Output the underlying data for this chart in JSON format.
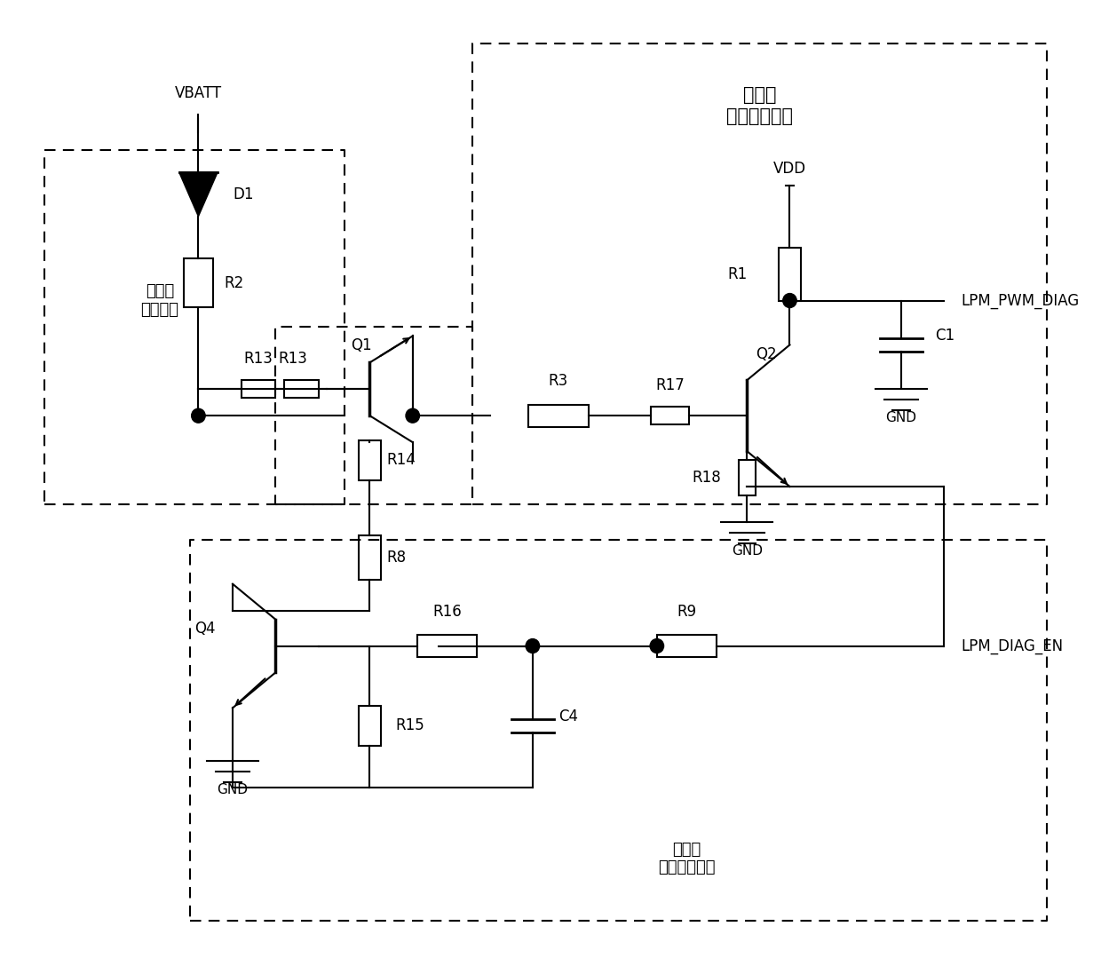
{
  "bg_color": "#ffffff",
  "line_color": "#000000",
  "line_width": 1.5,
  "dash_pattern": [
    6,
    4
  ],
  "font_size_label": 13,
  "font_size_component": 12,
  "font_size_title": 15,
  "title": "鼓风机\n诊断输出电路",
  "box1_label": "鼓风机\n负载电路",
  "box2_label": "鼓风机\n诊断使能电路",
  "vbatt_label": "VBATT",
  "vdd_label": "VDD",
  "gnd_label": "GND",
  "lpm_pwm_diag": "LPM_PWM_DIAG",
  "lpm_diag_en": "LPM_DIAG_EN",
  "components": {
    "D1": "D1",
    "R1": "R1",
    "R2": "R2",
    "R3": "R3",
    "R8": "R8",
    "R9": "R9",
    "R13": "R13",
    "R14": "R14",
    "R15": "R15",
    "R16": "R16",
    "R17": "R17",
    "R18": "R18",
    "Q1": "Q1",
    "Q2": "Q2",
    "Q4": "Q4",
    "C1": "C1",
    "C4": "C4"
  }
}
